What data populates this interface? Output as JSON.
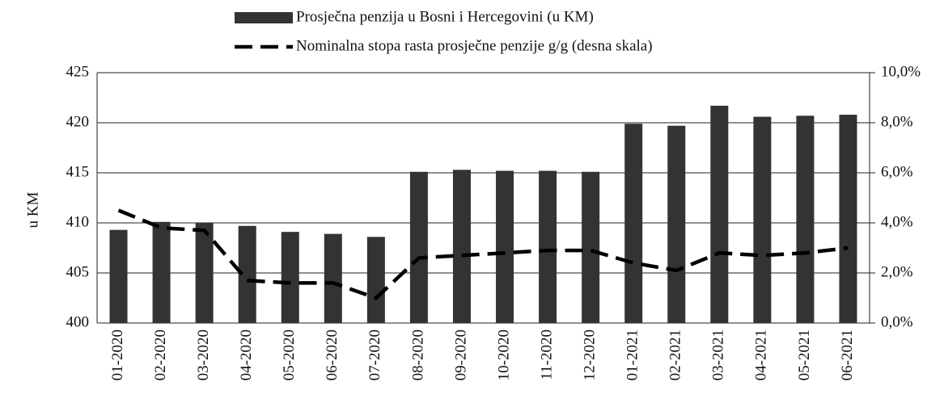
{
  "chart_data": {
    "type": "bar",
    "y_label": "u KM",
    "categories": [
      "01-2020",
      "02-2020",
      "03-2020",
      "04-2020",
      "05-2020",
      "06-2020",
      "07-2020",
      "08-2020",
      "09-2020",
      "10-2020",
      "11-2020",
      "12-2020",
      "01-2021",
      "02-2021",
      "03-2021",
      "04-2021",
      "05-2021",
      "06-2021"
    ],
    "series": [
      {
        "name": "Prosječna penzija u Bosni i Hercegovini (u KM)",
        "type": "bar",
        "color": "#333333",
        "values": [
          409.3,
          410.1,
          410.0,
          409.7,
          409.1,
          408.9,
          408.6,
          415.1,
          415.3,
          415.2,
          415.2,
          415.1,
          419.9,
          419.7,
          421.7,
          420.6,
          420.7,
          420.8
        ]
      },
      {
        "name": "Nominalna stopa rasta prosječne penzije g/g (desna skala)",
        "type": "line",
        "axis": "y2",
        "color": "#000000",
        "values": [
          4.5,
          3.8,
          3.7,
          1.7,
          1.6,
          1.6,
          1.0,
          2.6,
          2.7,
          2.8,
          2.9,
          2.9,
          2.4,
          2.1,
          2.8,
          2.7,
          2.8,
          3.0
        ]
      }
    ],
    "ylim": [
      400,
      425
    ],
    "yticks": [
      400,
      405,
      410,
      415,
      420,
      425
    ],
    "y2lim": [
      0,
      10
    ],
    "y2ticks": [
      {
        "value": 0,
        "label": "0,0%"
      },
      {
        "value": 2,
        "label": "2,0%"
      },
      {
        "value": 4,
        "label": "4,0%"
      },
      {
        "value": 6,
        "label": "6,0%"
      },
      {
        "value": 8,
        "label": "8,0%"
      },
      {
        "value": 10,
        "label": "10,0%"
      }
    ],
    "grid": true
  }
}
